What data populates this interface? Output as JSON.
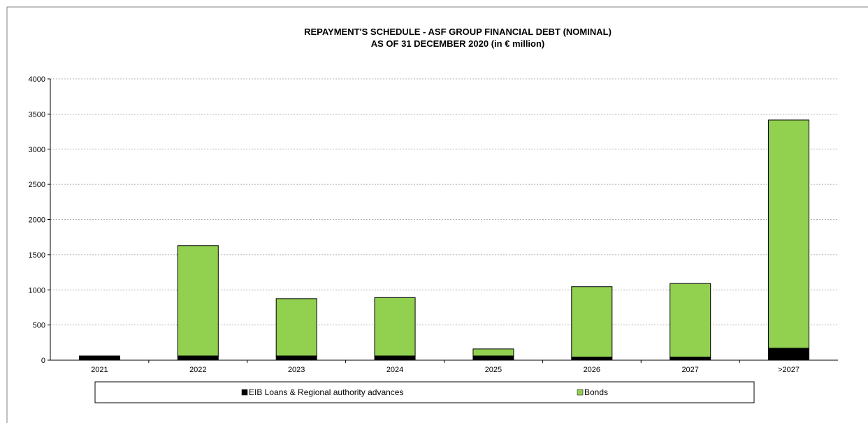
{
  "chart_data": {
    "type": "bar",
    "stacked": true,
    "title": "REPAYMENT'S SCHEDULE - ASF GROUP FINANCIAL DEBT (NOMINAL)",
    "subtitle": "AS OF 31 DECEMBER 2020 (in € million)",
    "categories": [
      "2021",
      "2022",
      "2023",
      "2024",
      "2025",
      "2026",
      "2027",
      ">2027"
    ],
    "series": [
      {
        "name": "EIB Loans & Regional authority advances",
        "color": "#000000",
        "values": [
          60,
          60,
          60,
          60,
          60,
          45,
          45,
          170
        ]
      },
      {
        "name": "Bonds",
        "color": "#92d050",
        "values": [
          0,
          1570,
          815,
          830,
          100,
          1000,
          1045,
          3245
        ]
      }
    ],
    "ylim": [
      0,
      4000
    ],
    "yticks": [
      0,
      500,
      1000,
      1500,
      2000,
      2500,
      3000,
      3500,
      4000
    ],
    "grid": true,
    "legend_position": "bottom"
  }
}
